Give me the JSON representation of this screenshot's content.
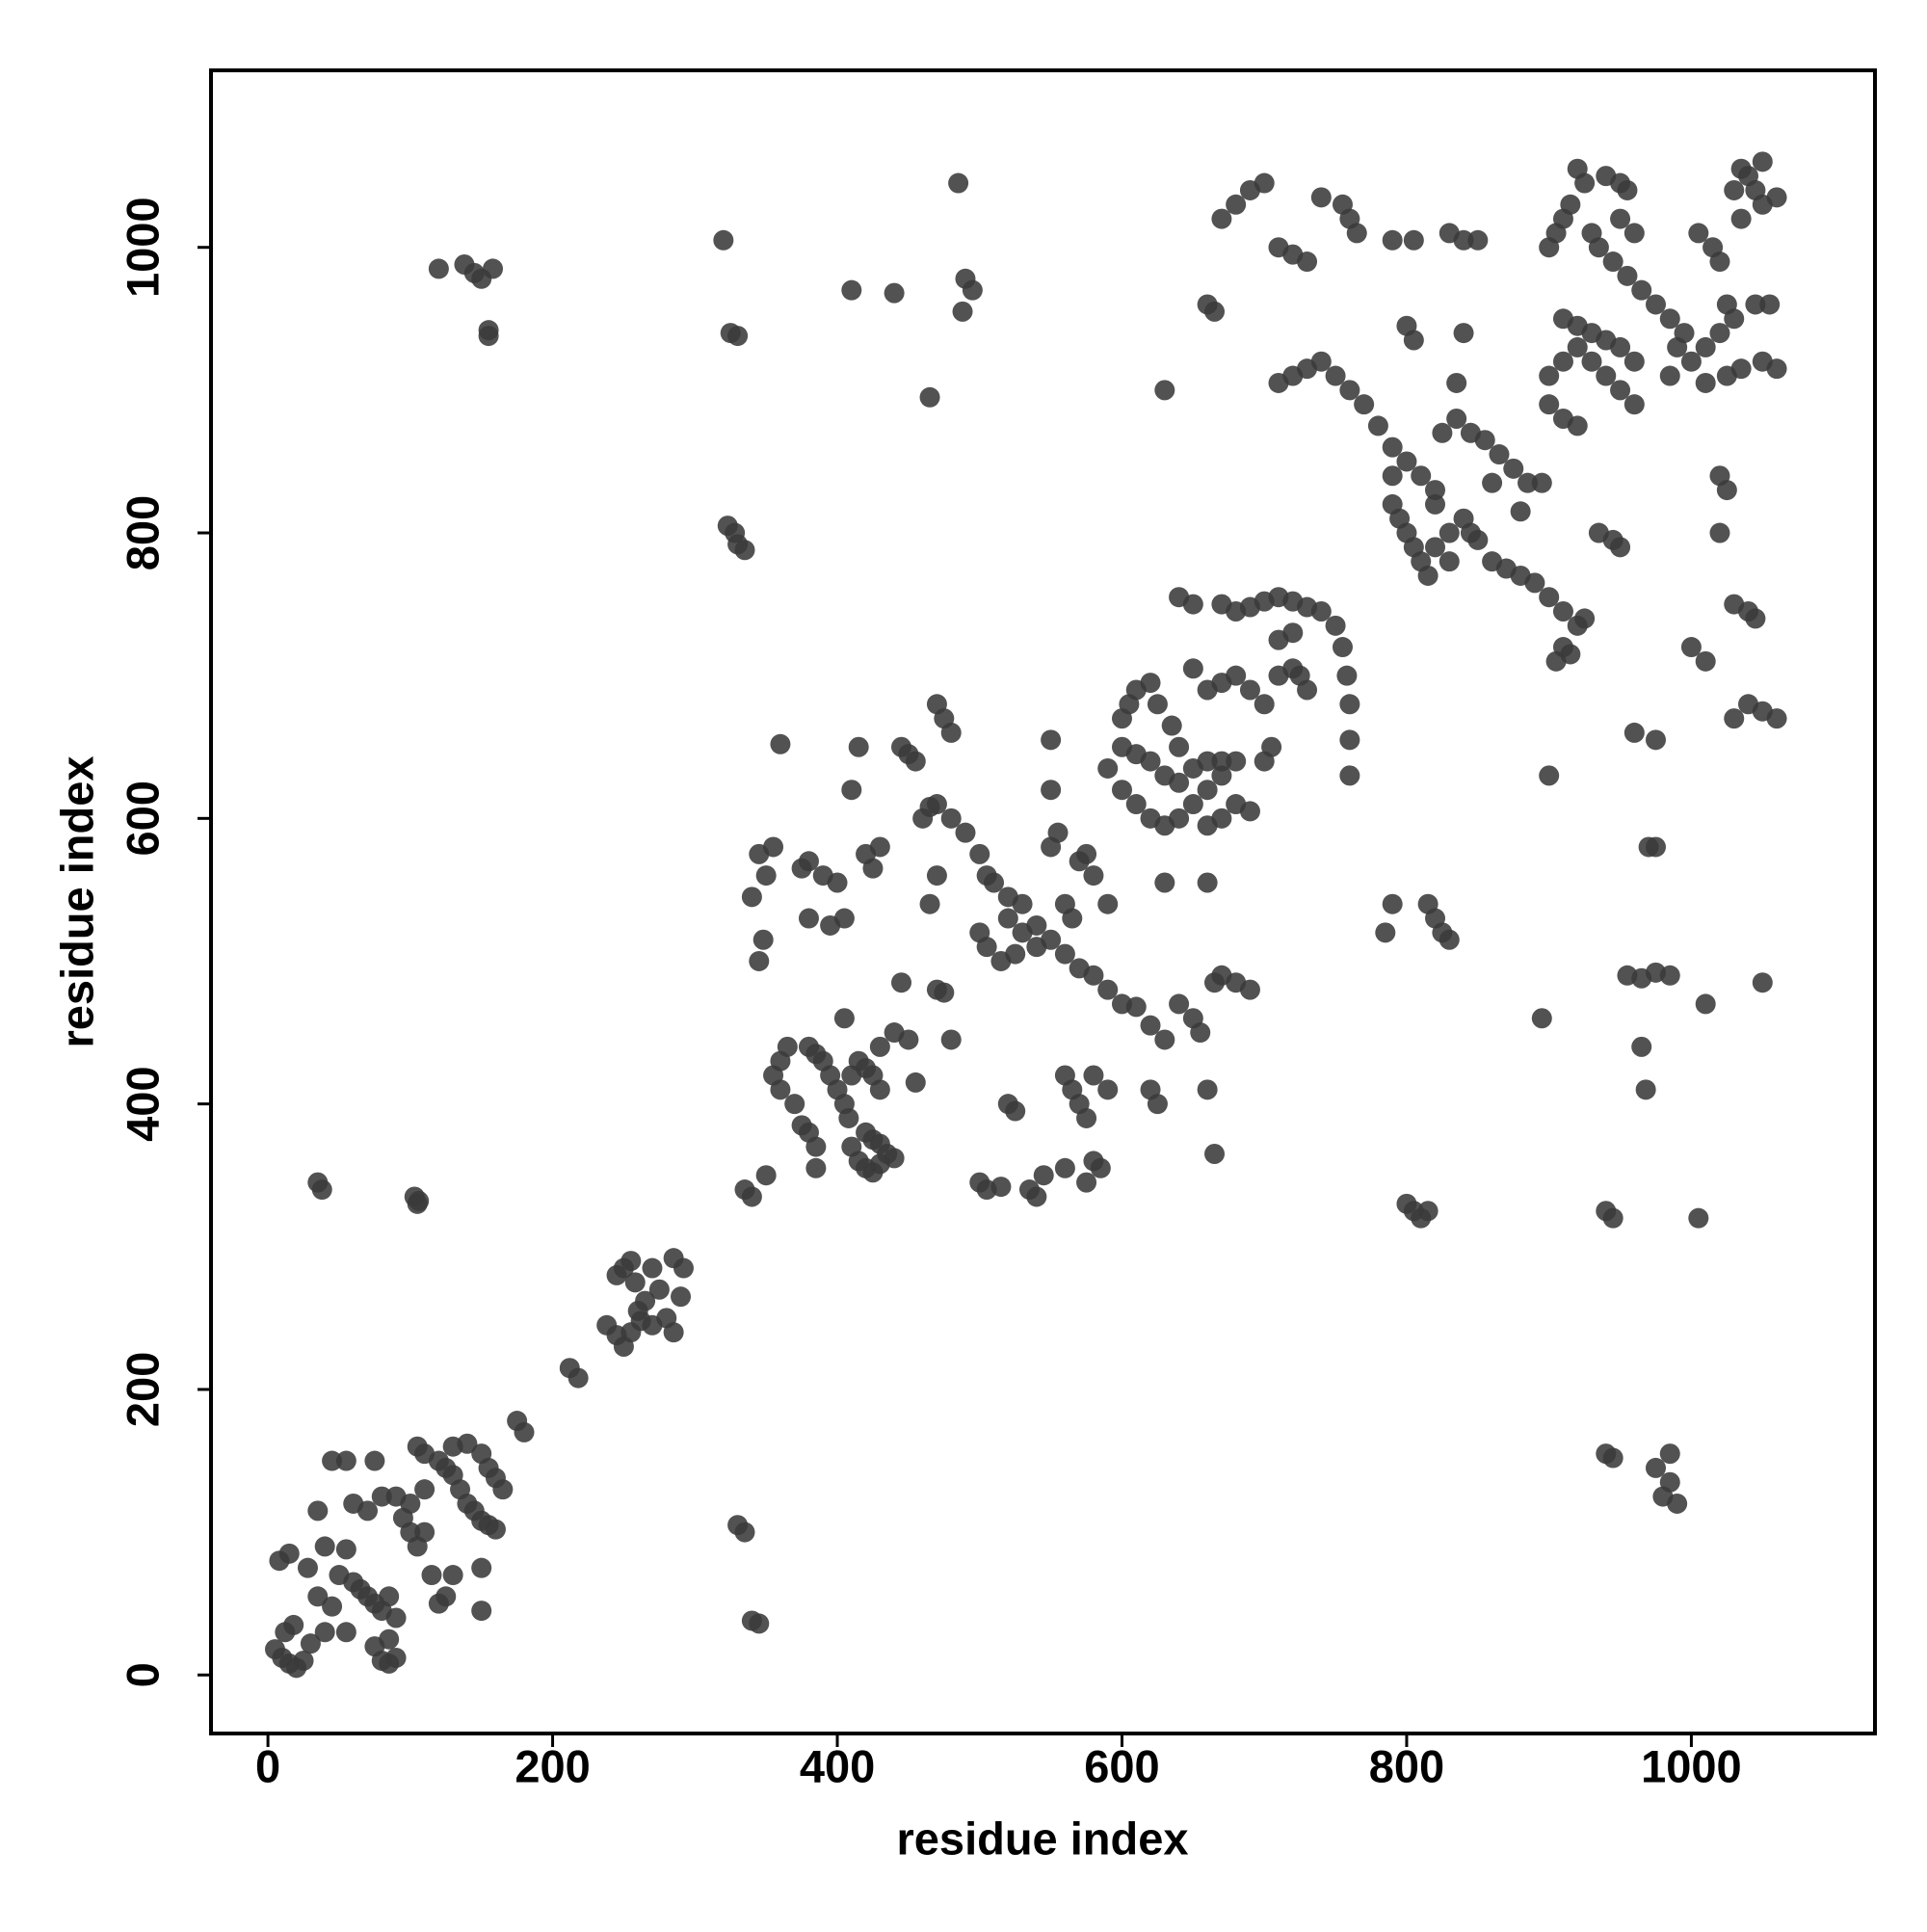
{
  "chart_data": {
    "type": "scatter",
    "x_label": "residue index",
    "y_label": "residue index",
    "color": "#3a3a3a",
    "xlim": [
      -40,
      1129
    ],
    "ylim": [
      -41,
      1124
    ],
    "xticks": [
      0,
      200,
      400,
      600,
      800,
      1000
    ],
    "yticks": [
      0,
      200,
      400,
      600,
      800,
      1000
    ],
    "x": [
      5,
      10,
      15,
      20,
      25,
      12,
      18,
      8,
      15,
      28,
      35,
      40,
      45,
      50,
      55,
      60,
      65,
      70,
      75,
      80,
      85,
      80,
      85,
      90,
      85,
      90,
      75,
      45,
      55,
      75,
      60,
      70,
      80,
      90,
      95,
      100,
      105,
      100,
      110,
      105,
      110,
      120,
      125,
      130,
      135,
      140,
      145,
      150,
      155,
      160,
      130,
      140,
      150,
      155,
      160,
      165,
      120,
      125,
      130,
      150,
      150,
      115,
      110,
      40,
      35,
      55,
      30,
      175,
      180,
      35,
      38,
      103,
      106,
      105,
      120,
      138,
      145,
      150,
      158,
      155,
      155,
      212,
      218,
      238,
      245,
      250,
      245,
      250,
      255,
      258,
      260,
      262,
      265,
      270,
      275,
      280,
      285,
      290,
      285,
      292,
      270,
      255,
      320,
      325,
      330,
      323,
      328,
      330,
      335,
      330,
      335,
      340,
      345,
      335,
      340,
      340,
      345,
      350,
      355,
      345,
      348,
      350,
      360,
      355,
      360,
      365,
      360,
      370,
      375,
      380,
      385,
      380,
      385,
      390,
      395,
      400,
      405,
      408,
      410,
      415,
      420,
      425,
      430,
      435,
      440,
      420,
      425,
      430,
      415,
      420,
      425,
      430,
      410,
      405,
      430,
      375,
      380,
      390,
      400,
      405,
      410,
      415,
      420,
      425,
      430,
      385,
      380,
      395,
      445,
      450,
      455,
      460,
      465,
      470,
      475,
      480,
      470,
      475,
      465,
      470,
      440,
      450,
      455,
      445,
      480,
      485,
      490,
      495,
      488,
      410,
      440,
      465,
      500,
      505,
      515,
      520,
      525,
      535,
      540,
      545,
      470,
      480,
      490,
      500,
      505,
      510,
      520,
      530,
      540,
      550,
      560,
      570,
      580,
      590,
      600,
      610,
      500,
      505,
      515,
      520,
      530,
      540,
      525,
      560,
      565,
      570,
      575,
      580,
      550,
      555,
      590,
      550,
      550,
      560,
      565,
      570,
      575,
      580,
      585,
      560,
      575,
      580,
      590,
      600,
      605,
      610,
      620,
      625,
      635,
      640,
      590,
      600,
      610,
      620,
      630,
      640,
      650,
      660,
      670,
      600,
      610,
      620,
      630,
      640,
      650,
      660,
      670,
      680,
      660,
      670,
      680,
      690,
      700,
      705,
      620,
      630,
      640,
      650,
      655,
      660,
      665,
      660,
      665,
      670,
      680,
      690,
      620,
      625,
      630,
      650,
      660,
      670,
      680,
      690,
      700,
      710,
      720,
      725,
      730,
      640,
      650,
      670,
      680,
      690,
      700,
      710,
      720,
      730,
      740,
      750,
      755,
      758,
      760,
      760,
      760,
      710,
      720,
      630,
      660,
      665,
      670,
      680,
      690,
      700,
      710,
      720,
      730,
      755,
      760,
      765,
      740,
      710,
      720,
      730,
      740,
      750,
      760,
      770,
      780,
      790,
      800,
      810,
      820,
      790,
      790,
      795,
      800,
      805,
      810,
      815,
      820,
      830,
      840,
      845,
      850,
      830,
      820,
      825,
      835,
      845,
      855,
      865,
      875,
      885,
      860,
      870,
      880,
      890,
      900,
      910,
      920,
      905,
      910,
      915,
      925,
      880,
      840,
      800,
      805,
      790,
      805,
      830,
      840,
      850,
      835,
      860,
      895,
      900,
      910,
      920,
      930,
      940,
      950,
      960,
      900,
      895,
      940,
      945,
      800,
      805,
      810,
      815,
      785,
      790,
      815,
      820,
      825,
      830,
      935,
      945,
      950,
      960,
      975,
      955,
      965,
      975,
      985,
      965,
      968,
      970,
      975,
      940,
      945,
      975,
      985,
      985,
      990,
      980,
      1005,
      1010,
      1000,
      1010,
      1020,
      1025,
      1020,
      1030,
      1040,
      1045,
      1030,
      1040,
      1050,
      1060,
      1050,
      1045,
      1055,
      1050,
      1060,
      1035,
      1040,
      1045,
      1050,
      1060,
      1050,
      1030,
      1035,
      1005,
      1015,
      1020,
      1025,
      1030,
      1020,
      1010,
      1000,
      990,
      985,
      1010,
      1025,
      1035,
      920,
      925,
      915,
      910,
      905,
      900,
      930,
      935,
      945,
      955,
      965,
      975,
      985,
      995,
      950,
      955,
      940,
      950,
      960,
      910,
      920,
      930,
      940,
      950,
      960,
      900,
      910,
      920
    ],
    "values": [
      18,
      12,
      8,
      5,
      10,
      30,
      35,
      80,
      85,
      75,
      55,
      30,
      48,
      70,
      88,
      65,
      60,
      55,
      50,
      45,
      55,
      10,
      8,
      12,
      25,
      40,
      20,
      150,
      150,
      150,
      120,
      115,
      125,
      125,
      110,
      100,
      90,
      120,
      130,
      160,
      155,
      150,
      145,
      140,
      130,
      120,
      115,
      108,
      105,
      102,
      160,
      162,
      155,
      145,
      138,
      130,
      50,
      55,
      70,
      45,
      75,
      70,
      100,
      90,
      115,
      30,
      22,
      178,
      170,
      345,
      340,
      335,
      332,
      330,
      985,
      988,
      982,
      978,
      985,
      942,
      938,
      215,
      208,
      245,
      238,
      230,
      280,
      285,
      290,
      275,
      255,
      248,
      262,
      285,
      270,
      250,
      240,
      265,
      292,
      285,
      245,
      240,
      1005,
      940,
      938,
      805,
      800,
      792,
      788,
      105,
      100,
      38,
      36,
      340,
      335,
      545,
      575,
      560,
      580,
      500,
      515,
      350,
      652,
      420,
      430,
      440,
      410,
      400,
      385,
      380,
      370,
      440,
      435,
      430,
      420,
      410,
      400,
      390,
      370,
      360,
      355,
      352,
      358,
      365,
      362,
      380,
      375,
      372,
      430,
      425,
      420,
      410,
      420,
      460,
      440,
      565,
      570,
      560,
      555,
      530,
      620,
      650,
      575,
      565,
      580,
      355,
      530,
      525,
      650,
      645,
      640,
      600,
      608,
      680,
      670,
      660,
      480,
      478,
      540,
      560,
      450,
      445,
      415,
      485,
      445,
      1045,
      978,
      970,
      955,
      970,
      968,
      895,
      345,
      340,
      342,
      400,
      395,
      340,
      335,
      350,
      610,
      600,
      590,
      575,
      560,
      555,
      545,
      540,
      525,
      515,
      505,
      495,
      490,
      480,
      470,
      468,
      520,
      510,
      500,
      530,
      520,
      510,
      505,
      540,
      530,
      570,
      575,
      560,
      580,
      590,
      540,
      655,
      620,
      420,
      410,
      400,
      390,
      360,
      355,
      355,
      345,
      420,
      410,
      670,
      680,
      690,
      695,
      680,
      665,
      650,
      635,
      620,
      610,
      600,
      595,
      600,
      610,
      620,
      630,
      650,
      645,
      640,
      630,
      625,
      635,
      640,
      640,
      640,
      595,
      600,
      610,
      605,
      640,
      650,
      455,
      445,
      470,
      460,
      450,
      410,
      365,
      555,
      485,
      490,
      485,
      480,
      410,
      400,
      555,
      705,
      690,
      695,
      700,
      690,
      680,
      700,
      705,
      700,
      690,
      755,
      750,
      750,
      745,
      748,
      752,
      755,
      752,
      748,
      745,
      735,
      720,
      700,
      680,
      655,
      630,
      725,
      730,
      900,
      960,
      955,
      1020,
      1030,
      1040,
      1045,
      1000,
      995,
      990,
      1030,
      1020,
      1010,
      1035,
      905,
      910,
      915,
      920,
      910,
      900,
      890,
      875,
      860,
      850,
      840,
      830,
      840,
      820,
      810,
      800,
      790,
      780,
      770,
      790,
      800,
      810,
      800,
      795,
      780,
      820,
      870,
      880,
      870,
      865,
      855,
      845,
      835,
      780,
      775,
      770,
      765,
      755,
      745,
      735,
      710,
      720,
      715,
      740,
      815,
      940,
      945,
      935,
      1005,
      1005,
      1010,
      1005,
      1005,
      905,
      835,
      835,
      910,
      920,
      930,
      920,
      910,
      900,
      890,
      630,
      460,
      325,
      320,
      330,
      325,
      320,
      325,
      520,
      540,
      540,
      530,
      520,
      515,
      800,
      795,
      790,
      660,
      655,
      490,
      488,
      492,
      490,
      440,
      410,
      580,
      580,
      155,
      152,
      145,
      155,
      135,
      120,
      125,
      320,
      470,
      720,
      710,
      840,
      830,
      800,
      750,
      745,
      740,
      670,
      680,
      675,
      670,
      485,
      960,
      960,
      920,
      915,
      1055,
      1050,
      1040,
      1030,
      1035,
      1060,
      1040,
      1020,
      1010,
      1000,
      990,
      960,
      950,
      940,
      930,
      920,
      930,
      910,
      905,
      910,
      915,
      1055,
      1045,
      1030,
      1020,
      1010,
      1000,
      1010,
      1000,
      990,
      980,
      970,
      960,
      950,
      940,
      1045,
      1040,
      1050,
      1020,
      1010,
      950,
      945,
      940,
      935,
      930,
      920,
      890,
      880,
      875
    ]
  }
}
